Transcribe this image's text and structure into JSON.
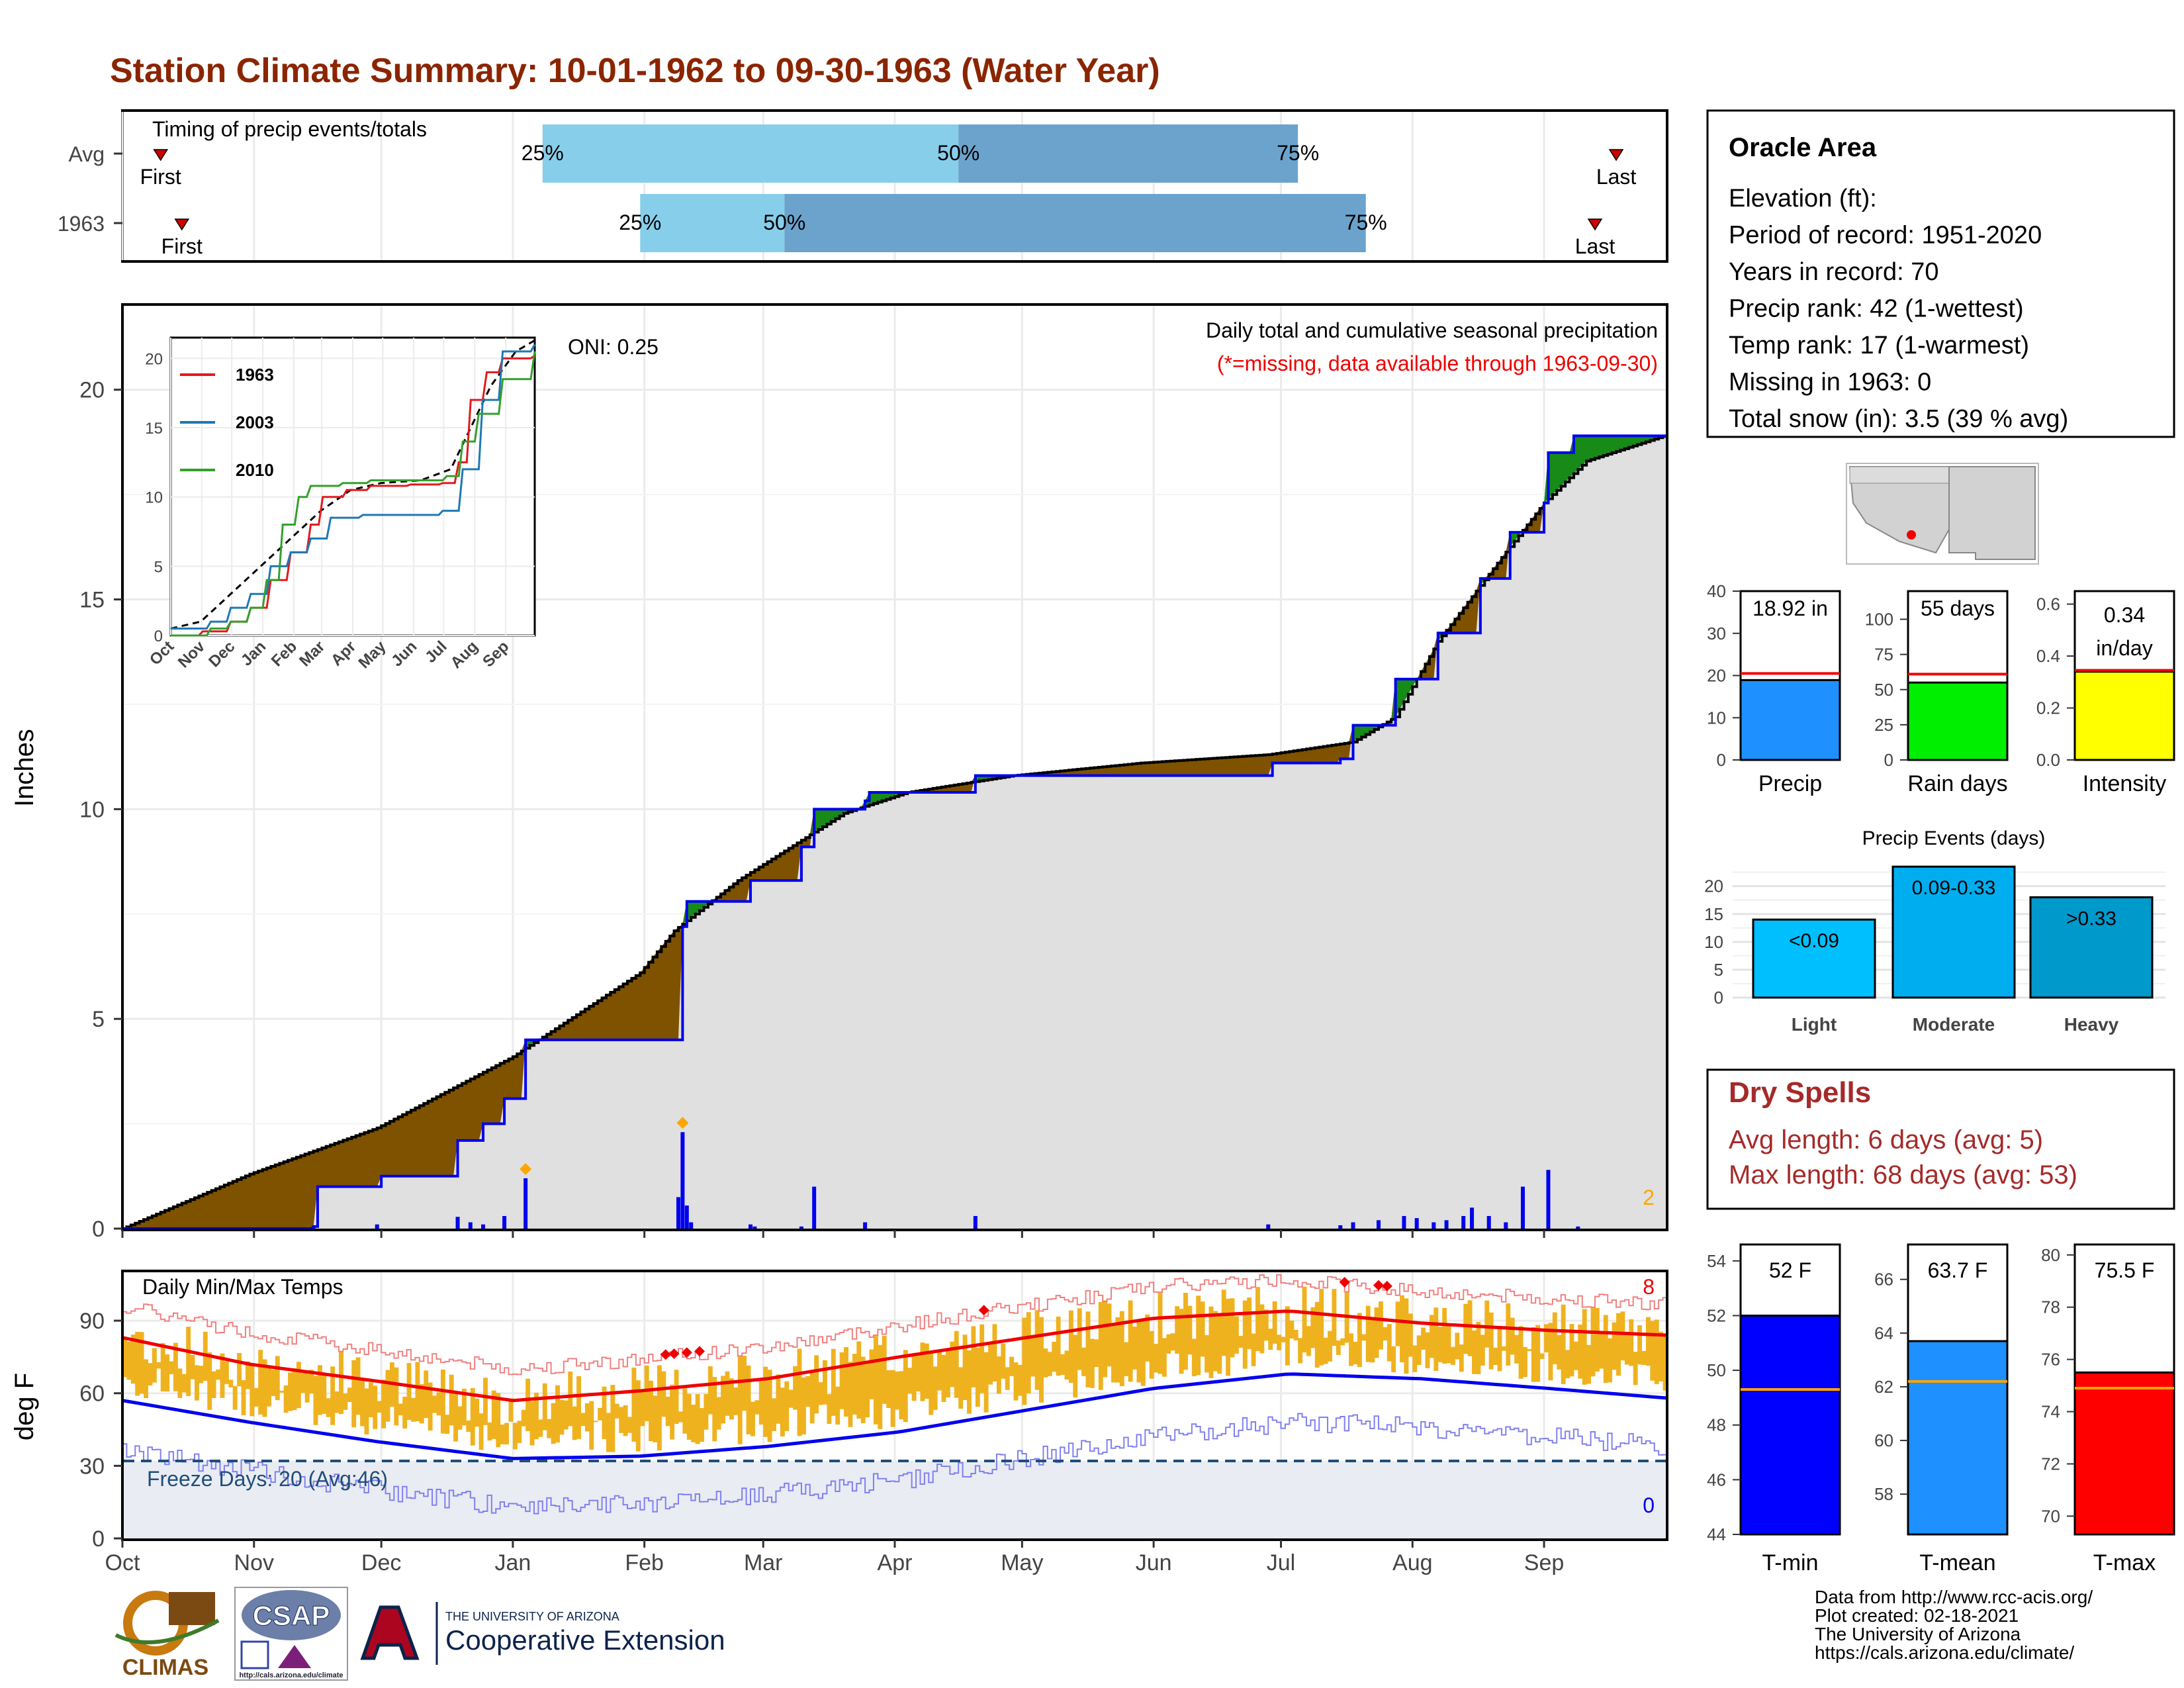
{
  "title": "Station Climate Summary: 10-01-1962 to 09-30-1963 (Water Year)",
  "colors": {
    "title": "#8B2500",
    "brown": "#7F5200",
    "green": "#178A17",
    "blue": "#0000EE",
    "grey_fill": "#E0E0E0",
    "lightblue": "#87CEEB",
    "midblue": "#6BA3CC",
    "orange": "#EFB21F",
    "red": "#EE0000",
    "navy": "#1F4E79"
  },
  "timing": {
    "label": "Timing of precip events/totals",
    "rows": [
      {
        "label": "Avg",
        "first_day": 9,
        "last_day": 352,
        "p25": 99,
        "p50": 197,
        "p75": 277,
        "first_label": "First",
        "last_label": "Last",
        "q25_label": "25%",
        "q50_label": "50%",
        "q75_label": "75%"
      },
      {
        "label": "1963",
        "first_day": 14,
        "last_day": 347,
        "p25": 122,
        "p50": 156,
        "p75": 293,
        "first_label": "First",
        "last_label": "Last",
        "q25_label": "25%",
        "q50_label": "50%",
        "q75_label": "75%"
      }
    ]
  },
  "precip_panel": {
    "y_label": "Inches",
    "y_ticks": [
      "0",
      "5",
      "10",
      "15",
      "20"
    ],
    "subtitle": "Daily total and cumulative seasonal precipitation",
    "missing_note": "(*=missing, data available through 1963-09-30)",
    "oni": "ONI: 0.25",
    "count_label": "2"
  },
  "temp_panel": {
    "title": "Daily Min/Max Temps",
    "y_label": "deg F",
    "y_ticks": [
      "0",
      "30",
      "60",
      "90"
    ],
    "freeze_note": "Freeze Days: 20 (Avg:46)",
    "max_count": "8",
    "min_count": "0"
  },
  "x_axis": {
    "months": [
      "Oct",
      "Nov",
      "Dec",
      "Jan",
      "Feb",
      "Mar",
      "Apr",
      "May",
      "Jun",
      "Jul",
      "Aug",
      "Sep"
    ]
  },
  "inset": {
    "months": [
      "Oct",
      "Nov",
      "Dec",
      "Jan",
      "Feb",
      "Mar",
      "Apr",
      "May",
      "Jun",
      "Jul",
      "Aug",
      "Sep"
    ],
    "y_ticks": [
      "0",
      "5",
      "10",
      "15",
      "20"
    ],
    "legend": [
      {
        "name": "1963",
        "color": "#E31A1C"
      },
      {
        "name": "2003",
        "color": "#1F78B4"
      },
      {
        "name": "2010",
        "color": "#33A02C"
      }
    ]
  },
  "info_box": {
    "name": "Oracle Area",
    "lines": [
      "Elevation (ft):",
      "Period of record: 1951-2020",
      "Years in record: 70",
      "Precip rank: 42 (1-wettest)",
      "Temp rank: 17 (1-warmest)",
      "Missing in 1963: 0",
      "Total snow (in): 3.5 (39 % avg)"
    ]
  },
  "small_bars": [
    {
      "label": "Precip",
      "value_text": "18.92 in",
      "value": 18.92,
      "avg": 20.5,
      "ymax": 40,
      "ticks": [
        "0",
        "10",
        "20",
        "30",
        "40"
      ],
      "color": "#1E90FF"
    },
    {
      "label": "Rain days",
      "value_text": "55 days",
      "value": 55,
      "avg": 61,
      "ymax": 120,
      "ticks": [
        "0",
        "25",
        "50",
        "75",
        "100"
      ],
      "color": "#00EE00"
    },
    {
      "label": "Intensity",
      "value_text": "0.34",
      "value_text2": "in/day",
      "value": 0.34,
      "avg": 0.345,
      "ymax": 0.65,
      "ticks": [
        "0.0",
        "0.2",
        "0.4",
        "0.6"
      ],
      "color": "#FFFF00"
    }
  ],
  "precip_events": {
    "title": "Precip Events (days)",
    "y_ticks": [
      "0",
      "5",
      "10",
      "15",
      "20"
    ],
    "bars": [
      {
        "category": "Light",
        "label": "<0.09",
        "value": 14,
        "color": "#00BFFF"
      },
      {
        "category": "Moderate",
        "label": "0.09-0.33",
        "value": 23.5,
        "color": "#00AEEF"
      },
      {
        "category": "Heavy",
        "label": ">0.33",
        "value": 18,
        "color": "#0099CC"
      }
    ]
  },
  "dry_spells": {
    "title": "Dry Spells",
    "avg_line": "Avg length: 6 days (avg: 5)",
    "max_line": "Max length: 68 days (avg: 53)"
  },
  "temp_bars": [
    {
      "label": "T-min",
      "value_text": "52 F",
      "value": 52,
      "avg": 49.3,
      "ymin": 44,
      "ymax": 54.6,
      "ticks": [
        "44",
        "46",
        "48",
        "50",
        "52",
        "54"
      ],
      "color": "#0000FF"
    },
    {
      "label": "T-mean",
      "value_text": "63.7 F",
      "value": 63.7,
      "avg": 62.2,
      "ymin": 56.5,
      "ymax": 67.3,
      "ticks": [
        "58",
        "60",
        "62",
        "64",
        "66"
      ],
      "color": "#1E90FF"
    },
    {
      "label": "T-max",
      "value_text": "75.5 F",
      "value": 75.5,
      "avg": 74.9,
      "ymin": 69.3,
      "ymax": 80.4,
      "ticks": [
        "70",
        "72",
        "74",
        "76",
        "78",
        "80"
      ],
      "color": "#FF0000"
    }
  ],
  "footer": {
    "lines": [
      "Data from http://www.rcc-acis.org/",
      "Plot created: 02-18-2021",
      "The University of Arizona",
      "https://cals.arizona.edu/climate/"
    ],
    "logo_climas": "CLIMAS",
    "logo_csap": "CSAP",
    "logo_csap_url": "http://cals.arizona.edu/climate",
    "ua_small": "THE UNIVERSITY OF ARIZONA",
    "ua_big": "Cooperative Extension"
  },
  "chart_data": {
    "type": "area",
    "x_unit": "day of water year (0 = Oct 1)",
    "cumulative_1963_in": [
      [
        0,
        0
      ],
      [
        30,
        1.3
      ],
      [
        60,
        2.4
      ],
      [
        92,
        4.1
      ],
      [
        122,
        6.1
      ],
      [
        130,
        7.1
      ],
      [
        145,
        8.3
      ],
      [
        170,
        9.9
      ],
      [
        185,
        10.4
      ],
      [
        210,
        10.8
      ],
      [
        240,
        11.1
      ],
      [
        270,
        11.3
      ],
      [
        290,
        11.6
      ],
      [
        300,
        12.2
      ],
      [
        310,
        14.0
      ],
      [
        325,
        16.0
      ],
      [
        335,
        17.3
      ],
      [
        345,
        18.3
      ],
      [
        364,
        18.92
      ]
    ],
    "cumulative_avg_in": [
      [
        0,
        0
      ],
      [
        45,
        0.05
      ],
      [
        46,
        1.0
      ],
      [
        60,
        1.0
      ],
      [
        61,
        1.25
      ],
      [
        78,
        1.25
      ],
      [
        79,
        2.1
      ],
      [
        85,
        2.5
      ],
      [
        90,
        3.1
      ],
      [
        95,
        4.5
      ],
      [
        131,
        4.5
      ],
      [
        132,
        7.2
      ],
      [
        133,
        7.8
      ],
      [
        148,
        8.3
      ],
      [
        160,
        9.1
      ],
      [
        163,
        10.0
      ],
      [
        175,
        10.2
      ],
      [
        176,
        10.4
      ],
      [
        200,
        10.4
      ],
      [
        201,
        10.8
      ],
      [
        270,
        10.8
      ],
      [
        271,
        11.1
      ],
      [
        287,
        11.2
      ],
      [
        290,
        12.0
      ],
      [
        300,
        13.1
      ],
      [
        310,
        14.2
      ],
      [
        320,
        15.5
      ],
      [
        327,
        16.6
      ],
      [
        335,
        17.3
      ],
      [
        336,
        18.5
      ],
      [
        342,
        18.9
      ],
      [
        364,
        18.9
      ]
    ],
    "daily_precip_in": [
      [
        45,
        0.05
      ],
      [
        60,
        0.1
      ],
      [
        79,
        0.28
      ],
      [
        82,
        0.15
      ],
      [
        85,
        0.1
      ],
      [
        90,
        0.3
      ],
      [
        95,
        1.2
      ],
      [
        131,
        0.75
      ],
      [
        132,
        2.3
      ],
      [
        133,
        0.55
      ],
      [
        134,
        0.15
      ],
      [
        148,
        0.1
      ],
      [
        149,
        0.05
      ],
      [
        160,
        0.05
      ],
      [
        163,
        1.0
      ],
      [
        175,
        0.15
      ],
      [
        201,
        0.3
      ],
      [
        270,
        0.1
      ],
      [
        287,
        0.08
      ],
      [
        290,
        0.15
      ],
      [
        296,
        0.2
      ],
      [
        302,
        0.3
      ],
      [
        305,
        0.25
      ],
      [
        309,
        0.15
      ],
      [
        312,
        0.2
      ],
      [
        316,
        0.3
      ],
      [
        318,
        0.5
      ],
      [
        322,
        0.3
      ],
      [
        326,
        0.15
      ],
      [
        330,
        1.0
      ],
      [
        336,
        1.4
      ],
      [
        343,
        0.05
      ]
    ],
    "temp_avg_max_F": [
      [
        0,
        83
      ],
      [
        30,
        72
      ],
      [
        60,
        65
      ],
      [
        92,
        57
      ],
      [
        122,
        61
      ],
      [
        152,
        66
      ],
      [
        183,
        75
      ],
      [
        213,
        83
      ],
      [
        243,
        91
      ],
      [
        275,
        94
      ],
      [
        306,
        89
      ],
      [
        336,
        86
      ],
      [
        364,
        84
      ]
    ],
    "temp_avg_min_F": [
      [
        0,
        57
      ],
      [
        30,
        48
      ],
      [
        60,
        40
      ],
      [
        92,
        33
      ],
      [
        122,
        34
      ],
      [
        152,
        38
      ],
      [
        183,
        44
      ],
      [
        213,
        53
      ],
      [
        243,
        62
      ],
      [
        275,
        68
      ],
      [
        306,
        66
      ],
      [
        336,
        62
      ],
      [
        364,
        58
      ]
    ],
    "freeze_threshold_F": 32,
    "ylim_precip": [
      0,
      22
    ],
    "ylim_temp": [
      0,
      110
    ]
  }
}
